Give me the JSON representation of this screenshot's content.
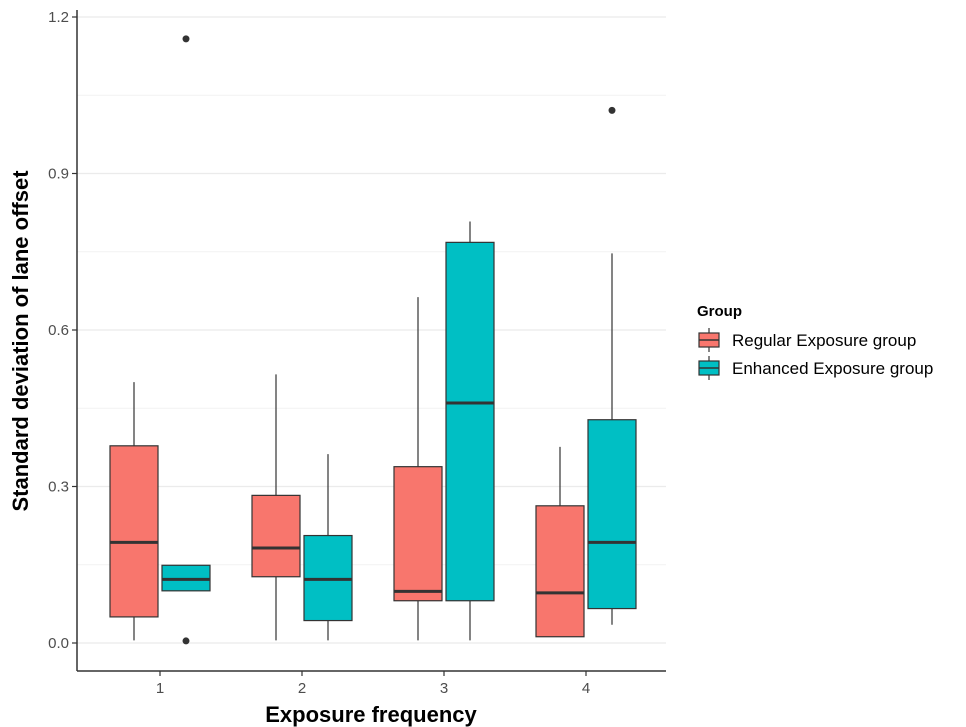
{
  "chart_data": {
    "type": "boxplot",
    "xlabel": "Exposure frequency",
    "ylabel": "Standard deviation of lane offset",
    "categories": [
      "1",
      "2",
      "3",
      "4"
    ],
    "ylim": [
      -0.05,
      1.21
    ],
    "yticks": [
      0.0,
      0.3,
      0.6,
      0.9,
      1.2
    ],
    "ytick_labels": [
      "0.0",
      "0.3",
      "0.6",
      "0.9",
      "1.2"
    ],
    "grid": true,
    "legend": {
      "title": "Group",
      "position": "right"
    },
    "series": [
      {
        "name": "Regular Exposure group",
        "color": "#F8766D",
        "boxes": [
          {
            "category": "1",
            "whisker_low": 0.005,
            "q1": 0.05,
            "median": 0.193,
            "q3": 0.378,
            "whisker_high": 0.5,
            "outliers": []
          },
          {
            "category": "2",
            "whisker_low": 0.005,
            "q1": 0.127,
            "median": 0.182,
            "q3": 0.283,
            "whisker_high": 0.515,
            "outliers": []
          },
          {
            "category": "3",
            "whisker_low": 0.005,
            "q1": 0.081,
            "median": 0.099,
            "q3": 0.338,
            "whisker_high": 0.663,
            "outliers": []
          },
          {
            "category": "4",
            "whisker_low": 0.012,
            "q1": 0.012,
            "median": 0.096,
            "q3": 0.263,
            "whisker_high": 0.376,
            "outliers": []
          }
        ]
      },
      {
        "name": "Enhanced Exposure group",
        "color": "#00BFC4",
        "boxes": [
          {
            "category": "1",
            "whisker_low": 0.1,
            "q1": 0.1,
            "median": 0.122,
            "q3": 0.149,
            "whisker_high": 0.149,
            "outliers": [
              1.158,
              0.004
            ]
          },
          {
            "category": "2",
            "whisker_low": 0.005,
            "q1": 0.043,
            "median": 0.122,
            "q3": 0.206,
            "whisker_high": 0.362,
            "outliers": []
          },
          {
            "category": "3",
            "whisker_low": 0.005,
            "q1": 0.081,
            "median": 0.46,
            "q3": 0.768,
            "whisker_high": 0.808,
            "outliers": []
          },
          {
            "category": "4",
            "whisker_low": 0.035,
            "q1": 0.066,
            "median": 0.193,
            "q3": 0.428,
            "whisker_high": 0.747,
            "outliers": [
              1.021
            ]
          }
        ]
      }
    ]
  }
}
